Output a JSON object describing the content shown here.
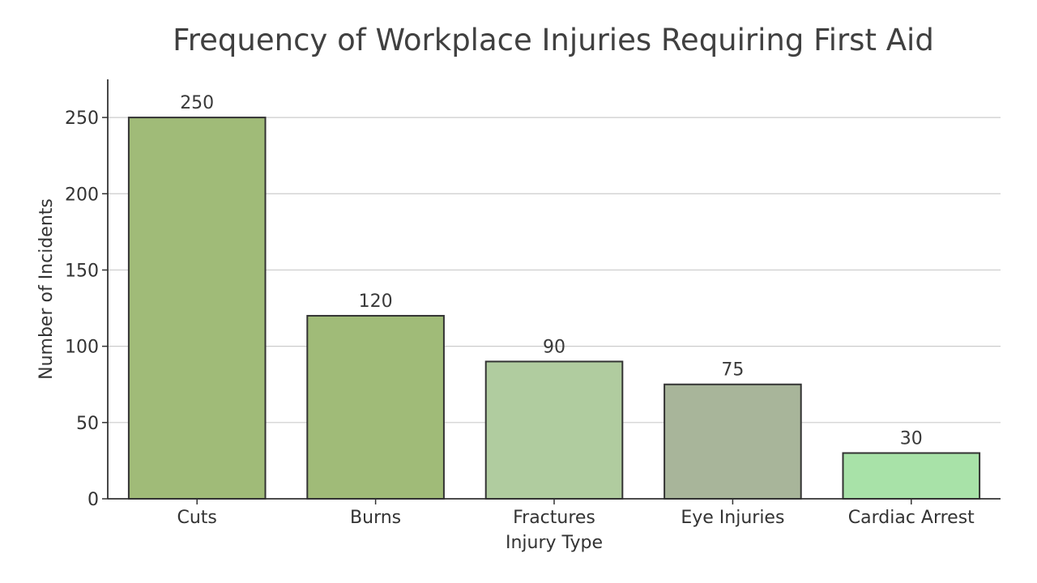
{
  "chart_data": {
    "type": "bar",
    "title": "Frequency of Workplace Injuries Requiring First Aid",
    "xlabel": "Injury Type",
    "ylabel": "Number of Incidents",
    "categories": [
      "Cuts",
      "Burns",
      "Fractures",
      "Eye Injuries",
      "Cardiac Arrest"
    ],
    "values": [
      250,
      120,
      90,
      75,
      30
    ],
    "data_labels": [
      "250",
      "120",
      "90",
      "75",
      "30"
    ],
    "bar_colors": [
      "#a0bb78",
      "#a0bb78",
      "#b0cc9f",
      "#a8b59a",
      "#a8e2a8"
    ],
    "bar_edge_color": "#333333",
    "ylim": [
      0,
      275
    ],
    "yticks": [
      0,
      50,
      100,
      150,
      200,
      250
    ],
    "ytick_labels": [
      "0",
      "50",
      "100",
      "150",
      "200",
      "250"
    ],
    "grid": true,
    "grid_axis": "y",
    "grid_color": "#cccccc",
    "axis_color": "#333333"
  }
}
